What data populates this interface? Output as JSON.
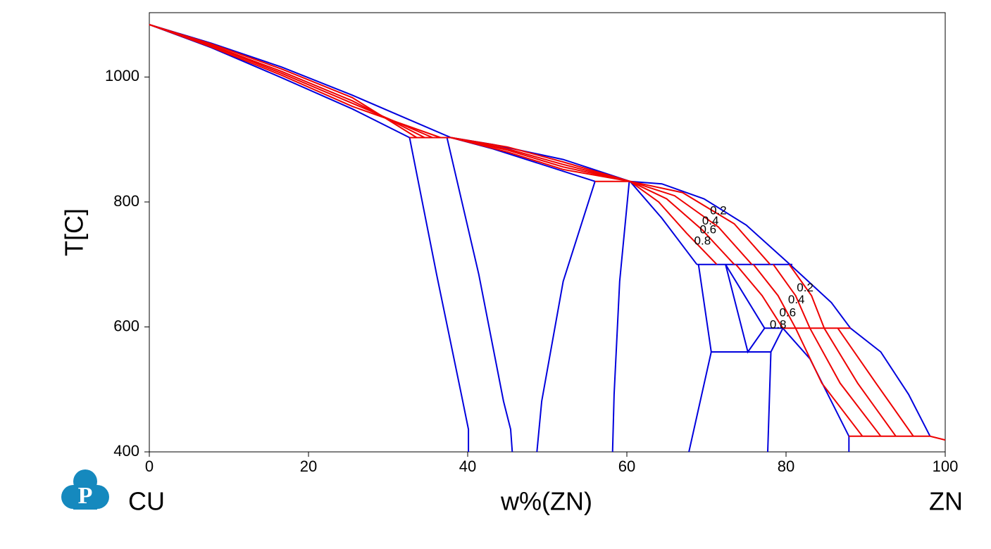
{
  "chart_data": {
    "type": "line",
    "logo": "P",
    "left_label": "CU",
    "right_label": "ZN",
    "x_label": "w%(ZN)",
    "y_label": "T[C]",
    "xlim": [
      0,
      100
    ],
    "ylim": [
      400,
      1103
    ],
    "xticks": [
      0,
      20,
      40,
      60,
      80,
      100
    ],
    "yticks": [
      400,
      600,
      800,
      1000
    ],
    "annotations": [
      {
        "text": "0.2",
        "x": 71.5,
        "y": 785
      },
      {
        "text": "0.4",
        "x": 70.5,
        "y": 769
      },
      {
        "text": "0.6",
        "x": 70.2,
        "y": 755
      },
      {
        "text": "0.8",
        "x": 69.5,
        "y": 737
      },
      {
        "text": "0.2",
        "x": 82.4,
        "y": 662
      },
      {
        "text": "0.4",
        "x": 81.3,
        "y": 643
      },
      {
        "text": "0.6",
        "x": 80.2,
        "y": 622
      },
      {
        "text": "0.8",
        "x": 79.0,
        "y": 603
      }
    ],
    "series": [
      {
        "color": "#0000dd",
        "x": [
          0,
          7.8,
          16.6,
          25.5,
          32.6,
          37.9,
          43.2,
          52.0,
          60.4,
          64.4,
          69.7,
          75.0,
          80.4,
          85.7,
          88.1,
          91.9,
          95.4,
          98.1
        ],
        "values": [
          1084,
          1054,
          1016,
          971,
          932,
          903,
          892,
          868,
          833,
          829,
          805,
          763,
          701,
          639,
          598,
          560,
          492,
          425
        ]
      },
      {
        "color": "#0000dd",
        "x": [
          0,
          7.8,
          16.6,
          25.5,
          32.7
        ],
        "values": [
          1084,
          1047,
          999,
          949,
          903
        ]
      },
      {
        "color": "#0000dd",
        "x": [
          32.7,
          36.1,
          39.2,
          40.1,
          40.1
        ],
        "values": [
          903,
          684,
          492,
          436,
          400
        ]
      },
      {
        "color": "#0000dd",
        "x": [
          37.4,
          41.4,
          44.5,
          45.4,
          45.6
        ],
        "values": [
          903,
          684,
          481,
          436,
          400
        ]
      },
      {
        "color": "#0000dd",
        "x": [
          37.9,
          43.2,
          56.0
        ],
        "values": [
          903,
          885,
          833
        ]
      },
      {
        "color": "#0000dd",
        "x": [
          56.0,
          52.0,
          49.3,
          48.7
        ],
        "values": [
          833,
          673,
          481,
          400
        ]
      },
      {
        "color": "#0000dd",
        "x": [
          60.3,
          59.1,
          58.4,
          58.2
        ],
        "values": [
          833,
          673,
          492,
          400
        ]
      },
      {
        "color": "#0000dd",
        "x": [
          60.4,
          64.4,
          68.8
        ],
        "values": [
          833,
          774,
          700
        ]
      },
      {
        "color": "#0000dd",
        "x": [
          68.8,
          80.8
        ],
        "values": [
          700,
          700
        ]
      },
      {
        "color": "#0000dd",
        "x": [
          69.0,
          70.6,
          67.8
        ],
        "values": [
          700,
          560,
          400
        ]
      },
      {
        "color": "#0000dd",
        "x": [
          72.4,
          75.2,
          77.3
        ],
        "values": [
          700,
          560,
          598
        ]
      },
      {
        "color": "#0000dd",
        "x": [
          72.4,
          77.3
        ],
        "values": [
          700,
          598
        ]
      },
      {
        "color": "#0000dd",
        "x": [
          70.6,
          78.1
        ],
        "values": [
          560,
          560
        ]
      },
      {
        "color": "#0000dd",
        "x": [
          77.7,
          78.1,
          79.6
        ],
        "values": [
          400,
          560,
          598
        ]
      },
      {
        "color": "#0000dd",
        "x": [
          77.3,
          79.6
        ],
        "values": [
          598,
          598
        ]
      },
      {
        "color": "#0000dd",
        "x": [
          79.6,
          83.0,
          87.9,
          87.9
        ],
        "values": [
          598,
          549,
          425,
          400
        ]
      },
      {
        "color": "#ee0000",
        "x": [
          32.7,
          37.9
        ],
        "values": [
          903,
          903
        ]
      },
      {
        "color": "#ee0000",
        "x": [
          56.0,
          60.4
        ],
        "values": [
          833,
          833
        ]
      },
      {
        "color": "#ee0000",
        "x": [
          79.6,
          88.1
        ],
        "values": [
          598,
          598
        ]
      },
      {
        "color": "#ee0000",
        "x": [
          87.9,
          98.1,
          100
        ],
        "values": [
          425,
          425,
          419
        ]
      },
      {
        "color": "#ee0000",
        "x": [
          0,
          7.8,
          16.6,
          25.5,
          33.6
        ],
        "values": [
          1084,
          1053,
          1013,
          967,
          903
        ]
      },
      {
        "color": "#ee0000",
        "x": [
          0,
          7.8,
          16.6,
          25.5,
          34.6
        ],
        "values": [
          1084,
          1051,
          1009,
          962,
          903
        ]
      },
      {
        "color": "#ee0000",
        "x": [
          0,
          7.8,
          16.6,
          25.5,
          35.6
        ],
        "values": [
          1084,
          1050,
          1006,
          958,
          903
        ]
      },
      {
        "color": "#ee0000",
        "x": [
          0,
          7.8,
          16.6,
          25.5,
          36.6
        ],
        "values": [
          1084,
          1048,
          1003,
          953,
          903
        ]
      },
      {
        "color": "#ee0000",
        "x": [
          37.9,
          45,
          52,
          60.4
        ],
        "values": [
          903,
          888,
          864,
          833
        ]
      },
      {
        "color": "#ee0000",
        "x": [
          37.9,
          45,
          52,
          60.4
        ],
        "values": [
          903,
          885,
          860,
          833
        ]
      },
      {
        "color": "#ee0000",
        "x": [
          37.9,
          45,
          52,
          60.4
        ],
        "values": [
          903,
          883,
          856,
          833
        ]
      },
      {
        "color": "#ee0000",
        "x": [
          37.9,
          45,
          52,
          60.4
        ],
        "values": [
          903,
          880,
          852,
          833
        ]
      },
      {
        "color": "#ee0000",
        "x": [
          60.4,
          64,
          67.5,
          71.3
        ],
        "values": [
          833,
          800,
          750,
          700
        ]
      },
      {
        "color": "#ee0000",
        "x": [
          60.4,
          65,
          69.5,
          73.5
        ],
        "values": [
          833,
          805,
          755,
          700
        ]
      },
      {
        "color": "#ee0000",
        "x": [
          60.4,
          66,
          71.5,
          75.7
        ],
        "values": [
          833,
          810,
          760,
          700
        ]
      },
      {
        "color": "#ee0000",
        "x": [
          60.4,
          67,
          73.5,
          78.0
        ],
        "values": [
          833,
          815,
          765,
          700
        ]
      },
      {
        "color": "#ee0000",
        "x": [
          73.7,
          77,
          79.6
        ],
        "values": [
          700,
          650,
          598
        ]
      },
      {
        "color": "#ee0000",
        "x": [
          75.9,
          79,
          81.2
        ],
        "values": [
          700,
          650,
          598
        ]
      },
      {
        "color": "#ee0000",
        "x": [
          78.4,
          81.2,
          83.0
        ],
        "values": [
          700,
          650,
          598
        ]
      },
      {
        "color": "#ee0000",
        "x": [
          80.4,
          83.2,
          84.8
        ],
        "values": [
          700,
          650,
          598
        ]
      },
      {
        "color": "#ee0000",
        "x": [
          81.2,
          84.5,
          89.6
        ],
        "values": [
          598,
          510,
          425
        ]
      },
      {
        "color": "#ee0000",
        "x": [
          83.0,
          86.8,
          91.9
        ],
        "values": [
          598,
          510,
          425
        ]
      },
      {
        "color": "#ee0000",
        "x": [
          84.8,
          89.0,
          93.8
        ],
        "values": [
          598,
          510,
          425
        ]
      },
      {
        "color": "#ee0000",
        "x": [
          86.5,
          91.3,
          96.0
        ],
        "values": [
          598,
          510,
          425
        ]
      }
    ]
  }
}
